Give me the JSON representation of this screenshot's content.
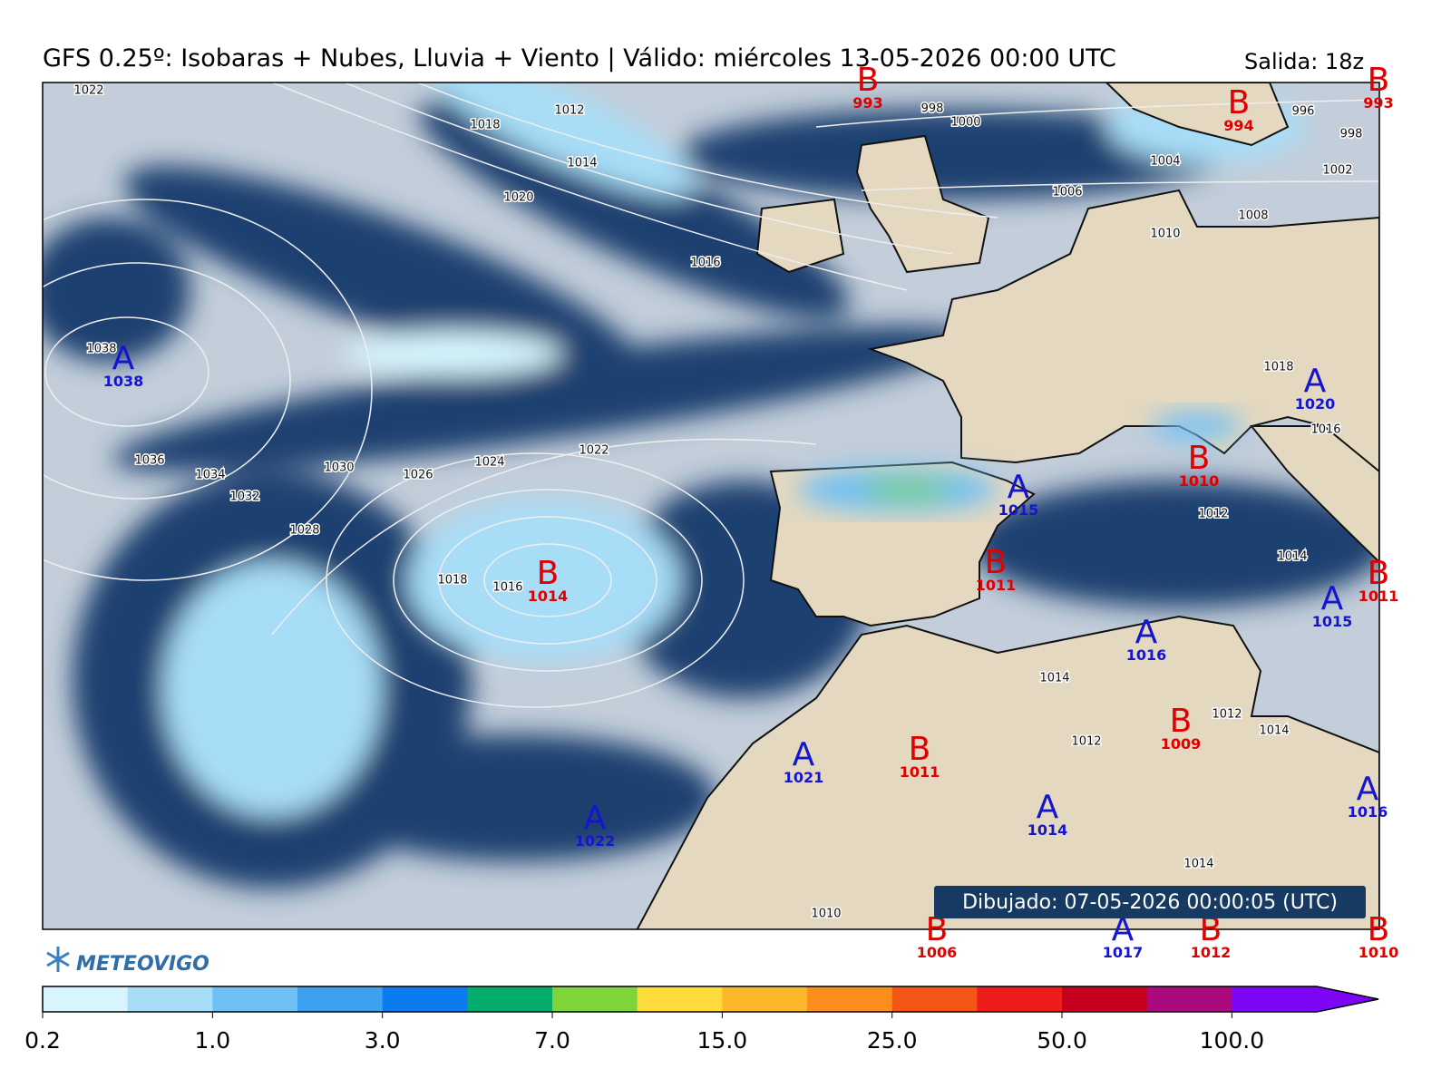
{
  "header": {
    "title": "GFS 0.25º: Isobaras + Nubes, Lluvia + Viento | Válido: miércoles 13-05-2026 00:00 UTC",
    "run": "Salida: 18z"
  },
  "map": {
    "centers": [
      {
        "letter": "B",
        "value": "993"
      },
      {
        "letter": "B",
        "value": "994"
      },
      {
        "letter": "B",
        "value": "993"
      },
      {
        "letter": "A",
        "value": "1038"
      },
      {
        "letter": "A",
        "value": "1020"
      },
      {
        "letter": "B",
        "value": "1010"
      },
      {
        "letter": "A",
        "value": "1015"
      },
      {
        "letter": "B",
        "value": "1014"
      },
      {
        "letter": "B",
        "value": "1011"
      },
      {
        "letter": "B",
        "value": "1011"
      },
      {
        "letter": "A",
        "value": "1015"
      },
      {
        "letter": "A",
        "value": "1016"
      },
      {
        "letter": "B",
        "value": "1009"
      },
      {
        "letter": "A",
        "value": "1021"
      },
      {
        "letter": "B",
        "value": "1011"
      },
      {
        "letter": "A",
        "value": "1016"
      },
      {
        "letter": "A",
        "value": "1014"
      },
      {
        "letter": "A",
        "value": "1022"
      },
      {
        "letter": "B",
        "value": "1006"
      },
      {
        "letter": "A",
        "value": "1017"
      },
      {
        "letter": "B",
        "value": "1012"
      },
      {
        "letter": "B",
        "value": "1010"
      }
    ],
    "isobar_labels": [
      "1022",
      "1018",
      "1012",
      "1014",
      "1020",
      "998",
      "1000",
      "996",
      "998",
      "1002",
      "1004",
      "1006",
      "1008",
      "1010",
      "1016",
      "1038",
      "1036",
      "1034",
      "1032",
      "1030",
      "1028",
      "1026",
      "1024",
      "1022",
      "1018",
      "1016",
      "1018",
      "1016",
      "1012",
      "1014",
      "1014",
      "1012",
      "1012",
      "1014",
      "1014",
      "1010"
    ],
    "timestamp": "Dibujado: 07-05-2026 00:00:05 (UTC)"
  },
  "logo": {
    "name": "METEOVIGO"
  },
  "colorbar": {
    "colors": [
      "#d6f5fd",
      "#a8ddf7",
      "#6fc0f5",
      "#3da0f0",
      "#0d7bf0",
      "#05ad6c",
      "#7fd43a",
      "#fddb3a",
      "#fdb72a",
      "#fb8e1c",
      "#f55516",
      "#ef1c1c",
      "#c6001e",
      "#ab0a7e",
      "#7c06f5"
    ],
    "tick_labels": [
      "0.2",
      "1.0",
      "3.0",
      "7.0",
      "15.0",
      "25.0",
      "50.0",
      "100.0"
    ]
  }
}
